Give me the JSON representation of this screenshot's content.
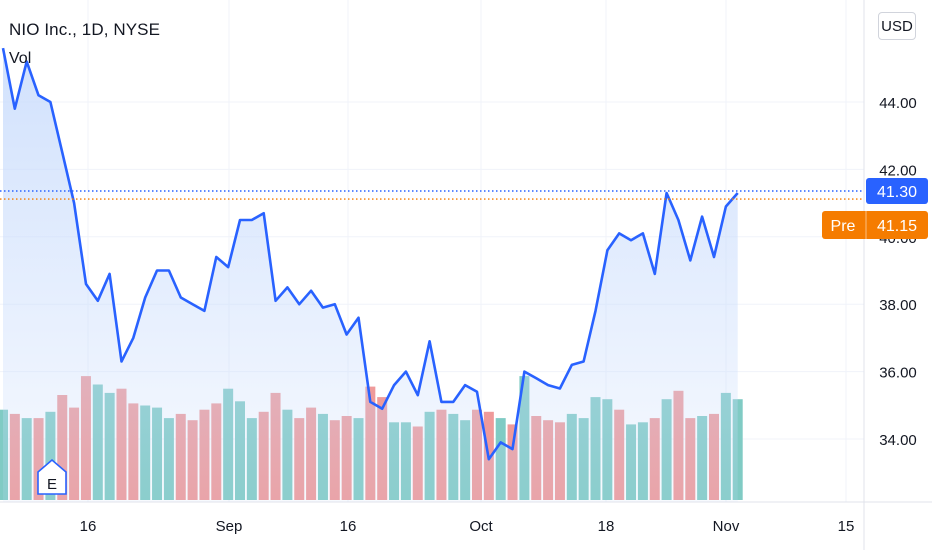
{
  "legend": {
    "title": "NIO Inc., 1D, NYSE",
    "volume_label": "Vol"
  },
  "currency": "USD",
  "earnings_marker": "E",
  "price_tags": {
    "last": {
      "value": "41.30",
      "color": "#2962ff"
    },
    "pre": {
      "label": "Pre",
      "value": "41.15",
      "color": "#f57c00"
    }
  },
  "colors": {
    "line": "#2962ff",
    "area_top": "#c9dcfc",
    "volume_up": "#80cbc4",
    "volume_down": "#ef9a9a",
    "grid": "#f0f3fa"
  },
  "chart_data": {
    "type": "line",
    "title": "NIO Inc., 1D, NYSE",
    "y_axis": {
      "ticks": [
        "34.00",
        "36.00",
        "38.00",
        "40.00",
        "42.00",
        "44.00"
      ],
      "range": [
        32.5,
        46.6
      ]
    },
    "x_axis": {
      "tick_labels": [
        "16",
        "Sep",
        "16",
        "Oct",
        "18",
        "Nov",
        "15"
      ]
    },
    "grid": true,
    "series": [
      {
        "values": [
          45.6,
          43.8,
          45.2,
          44.2,
          44.0,
          42.5,
          41.0,
          38.6,
          38.1,
          38.9,
          36.3,
          37.0,
          38.2,
          39.0,
          39.0,
          38.2,
          38.0,
          37.8,
          39.4,
          39.1,
          40.5,
          40.5,
          40.7,
          38.1,
          38.5,
          38.0,
          38.4,
          37.9,
          38.0,
          37.1,
          37.6,
          35.1,
          34.9,
          35.6,
          36.0,
          35.3,
          36.9,
          35.1,
          35.1,
          35.6,
          35.4,
          33.4,
          33.9,
          33.7,
          36.0,
          35.8,
          35.6,
          35.5,
          36.2,
          36.3,
          37.8,
          39.6,
          40.1,
          39.9,
          40.1,
          38.9,
          41.3,
          40.5,
          39.3,
          40.6,
          39.4,
          40.9,
          41.3
        ]
      }
    ],
    "volume": {
      "values": [
        4.3,
        4.1,
        3.9,
        3.9,
        4.2,
        5.0,
        4.4,
        5.9,
        5.5,
        5.1,
        5.3,
        4.6,
        4.5,
        4.4,
        3.9,
        4.1,
        3.8,
        4.3,
        4.6,
        5.3,
        4.7,
        3.9,
        4.2,
        5.1,
        4.3,
        3.9,
        4.4,
        4.1,
        3.8,
        4.0,
        3.9,
        5.4,
        4.9,
        3.7,
        3.7,
        3.5,
        4.2,
        4.3,
        4.1,
        3.8,
        4.3,
        4.2,
        3.9,
        3.6,
        5.9,
        4.0,
        3.8,
        3.7,
        4.1,
        3.9,
        4.9,
        4.8,
        4.3,
        3.6,
        3.7,
        3.9,
        4.8,
        5.2,
        3.9,
        4.0,
        4.1,
        5.1,
        4.8
      ],
      "directions": [
        "up",
        "down",
        "up",
        "down",
        "up",
        "down",
        "down",
        "down",
        "up",
        "up",
        "down",
        "down",
        "up",
        "up",
        "up",
        "down",
        "down",
        "down",
        "down",
        "up",
        "up",
        "up",
        "down",
        "down",
        "up",
        "down",
        "down",
        "up",
        "down",
        "down",
        "up",
        "down",
        "down",
        "up",
        "up",
        "down",
        "up",
        "down",
        "up",
        "up",
        "down",
        "down",
        "up",
        "down",
        "up",
        "down",
        "down",
        "down",
        "up",
        "up",
        "up",
        "up",
        "down",
        "up",
        "up",
        "down",
        "up",
        "down",
        "down",
        "up",
        "down",
        "up",
        "up"
      ]
    }
  }
}
